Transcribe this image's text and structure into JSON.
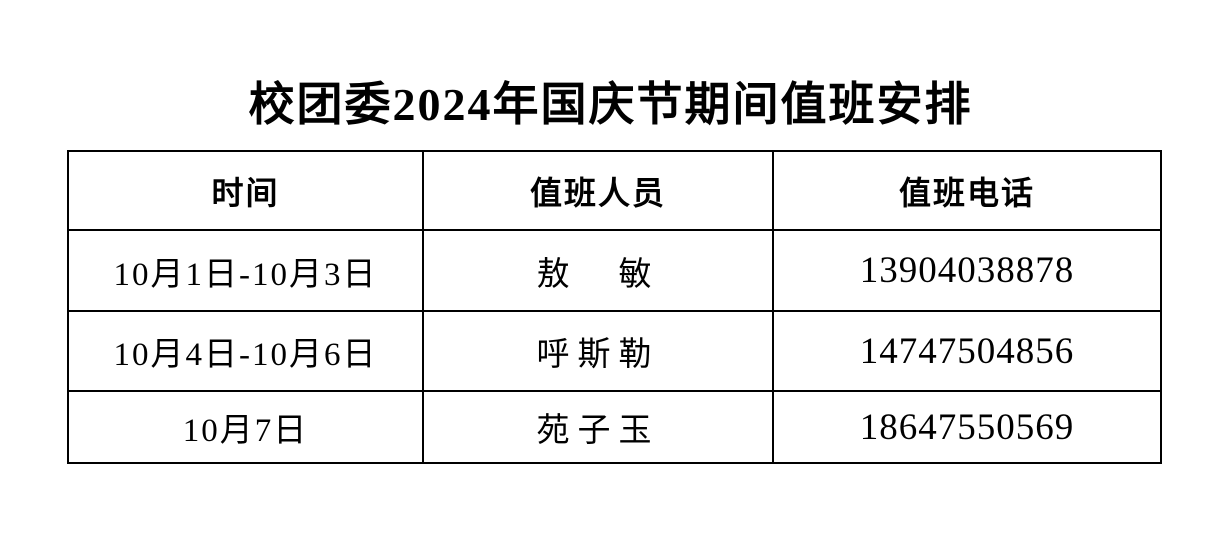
{
  "document": {
    "title": "校团委2024年国庆节期间值班安排"
  },
  "table": {
    "columns": [
      "时间",
      "值班人员",
      "值班电话"
    ],
    "rows": [
      {
        "time": "10月1日-10月3日",
        "person": "敖　敏",
        "phone": "13904038878"
      },
      {
        "time": "10月4日-10月6日",
        "person": "呼斯勒",
        "phone": "14747504856"
      },
      {
        "time": "10月7日",
        "person": "苑子玉",
        "phone": "18647550569"
      }
    ]
  },
  "colors": {
    "text": "#000000",
    "background": "#ffffff",
    "border": "#000000"
  }
}
